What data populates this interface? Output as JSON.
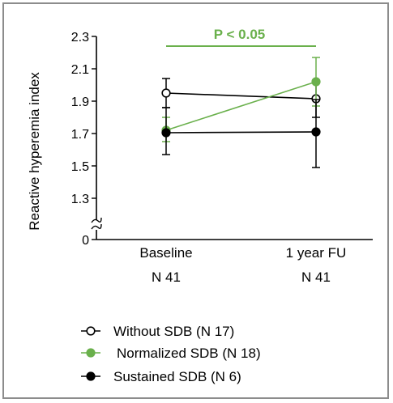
{
  "colors": {
    "green": "#6ab04c",
    "black": "#000000",
    "frame": "#8c8c8c"
  },
  "chart_data": {
    "type": "line",
    "ylabel": "Reactive hyperemia index",
    "categories": [
      "Baseline",
      "1 year FU"
    ],
    "category_sublabels": [
      "N 41",
      "N 41"
    ],
    "yticks": [
      "0",
      "1.3",
      "1.5",
      "1.7",
      "1.9",
      "2.1",
      "2.3"
    ],
    "ylim": [
      1.2,
      2.32
    ],
    "axis_break": true,
    "significance": {
      "label": "P < 0.05",
      "from": "Baseline",
      "to": "1 year FU"
    },
    "series": [
      {
        "name": "Without SDB (N 17)",
        "marker": "open-circle",
        "color": "#000000",
        "values": [
          1.95,
          1.915
        ],
        "err_low": [
          1.86,
          1.8
        ],
        "err_high": [
          2.04,
          2.03
        ]
      },
      {
        "name": "Normalized SDB (N 18)",
        "marker": "filled-circle",
        "color": "#6ab04c",
        "values": [
          1.72,
          2.02
        ],
        "err_low": [
          1.65,
          1.87
        ],
        "err_high": [
          1.8,
          2.17
        ]
      },
      {
        "name": "Sustained SDB (N 6)",
        "marker": "filled-circle",
        "color": "#000000",
        "values": [
          1.705,
          1.71
        ],
        "err_low": [
          1.57,
          1.49
        ],
        "err_high": [
          1.86,
          1.91
        ]
      }
    ],
    "legend_position": "bottom-left",
    "grid": false
  }
}
